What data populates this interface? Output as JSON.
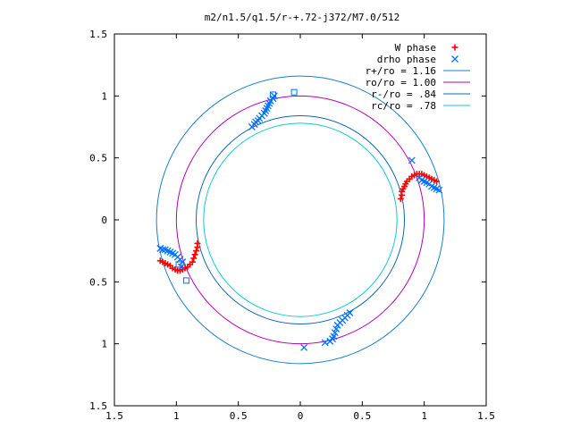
{
  "chart_data": {
    "type": "scatter",
    "title": "m2/n1.5/q1.5/r-+.72-j372/M7.0/512",
    "xlim": [
      -1.5,
      1.5
    ],
    "ylim": [
      -1.5,
      1.5
    ],
    "x_ticks": [
      -1.5,
      -1,
      -0.5,
      0,
      0.5,
      1,
      1.5
    ],
    "y_ticks": [
      -1.5,
      -1,
      -0.5,
      0,
      0.5,
      1,
      1.5
    ],
    "x_tick_labels": [
      "1.5",
      "1",
      "0.5",
      "0",
      "0.5",
      "1",
      "1.5"
    ],
    "y_tick_labels": [
      "1.5",
      "1",
      "0.5",
      "0",
      "0.5",
      "1",
      "1.5"
    ],
    "grid": false,
    "legend_position": "top-right",
    "series": [
      {
        "name": "W phase",
        "marker": "plus",
        "color": "#ff0000",
        "points": [
          [
            0.81,
            0.17
          ],
          [
            0.82,
            0.2
          ],
          [
            0.82,
            0.23
          ],
          [
            0.83,
            0.25
          ],
          [
            0.84,
            0.27
          ],
          [
            0.85,
            0.29
          ],
          [
            0.86,
            0.31
          ],
          [
            0.88,
            0.33
          ],
          [
            0.9,
            0.35
          ],
          [
            0.92,
            0.36
          ],
          [
            0.94,
            0.37
          ],
          [
            0.96,
            0.37
          ],
          [
            0.98,
            0.37
          ],
          [
            1.0,
            0.36
          ],
          [
            1.02,
            0.35
          ],
          [
            1.04,
            0.34
          ],
          [
            1.06,
            0.33
          ],
          [
            1.08,
            0.32
          ],
          [
            1.1,
            0.31
          ],
          [
            -0.83,
            -0.19
          ],
          [
            -0.83,
            -0.22
          ],
          [
            -0.84,
            -0.25
          ],
          [
            -0.85,
            -0.28
          ],
          [
            -0.86,
            -0.31
          ],
          [
            -0.87,
            -0.34
          ],
          [
            -0.89,
            -0.36
          ],
          [
            -0.91,
            -0.38
          ],
          [
            -0.93,
            -0.39
          ],
          [
            -0.95,
            -0.4
          ],
          [
            -0.97,
            -0.41
          ],
          [
            -0.99,
            -0.41
          ],
          [
            -1.01,
            -0.4
          ],
          [
            -1.03,
            -0.39
          ],
          [
            -1.05,
            -0.37
          ],
          [
            -1.07,
            -0.36
          ],
          [
            -1.09,
            -0.35
          ],
          [
            -1.11,
            -0.34
          ],
          [
            -1.13,
            -0.33
          ]
        ]
      },
      {
        "name": "drho phase",
        "marker": "cross",
        "color": "#0072ff",
        "points": [
          [
            0.9,
            0.48
          ],
          [
            0.96,
            0.34
          ],
          [
            0.98,
            0.32
          ],
          [
            1.0,
            0.31
          ],
          [
            1.02,
            0.3
          ],
          [
            1.04,
            0.29
          ],
          [
            1.06,
            0.27
          ],
          [
            1.08,
            0.26
          ],
          [
            1.1,
            0.25
          ],
          [
            1.12,
            0.24
          ],
          [
            -0.21,
            1.0
          ],
          [
            -0.22,
            0.98
          ],
          [
            -0.24,
            0.96
          ],
          [
            -0.25,
            0.94
          ],
          [
            -0.26,
            0.92
          ],
          [
            -0.27,
            0.9
          ],
          [
            -0.28,
            0.88
          ],
          [
            -0.29,
            0.86
          ],
          [
            -0.31,
            0.84
          ],
          [
            -0.33,
            0.82
          ],
          [
            -0.34,
            0.8
          ],
          [
            -0.36,
            0.79
          ],
          [
            -0.37,
            0.77
          ],
          [
            -0.39,
            0.75
          ],
          [
            -1.13,
            -0.23
          ],
          [
            -1.11,
            -0.24
          ],
          [
            -1.09,
            -0.24
          ],
          [
            -1.07,
            -0.25
          ],
          [
            -1.05,
            -0.26
          ],
          [
            -1.03,
            -0.27
          ],
          [
            -1.01,
            -0.28
          ],
          [
            -0.99,
            -0.3
          ],
          [
            -0.97,
            -0.32
          ],
          [
            -0.95,
            -0.34
          ],
          [
            -0.96,
            -0.38
          ],
          [
            0.03,
            -1.03
          ],
          [
            0.2,
            -0.99
          ],
          [
            0.24,
            -0.98
          ],
          [
            0.26,
            -0.96
          ],
          [
            0.27,
            -0.94
          ],
          [
            0.28,
            -0.91
          ],
          [
            0.29,
            -0.88
          ],
          [
            0.3,
            -0.85
          ],
          [
            0.32,
            -0.83
          ],
          [
            0.34,
            -0.81
          ],
          [
            0.36,
            -0.79
          ],
          [
            0.38,
            -0.77
          ],
          [
            0.4,
            -0.75
          ]
        ]
      },
      {
        "name": "",
        "marker": "square",
        "color": "#0072ff",
        "points": [
          [
            -0.22,
            1.01
          ],
          [
            -0.05,
            1.03
          ],
          [
            -0.92,
            -0.49
          ],
          [
            -0.98,
            -0.36
          ]
        ]
      }
    ],
    "circles": [
      {
        "name": "r+/ro = 1.16",
        "radius": 1.16,
        "color": "#1a7fc8"
      },
      {
        "name": "ro/ro = 1.00",
        "radius": 1.0,
        "color": "#b400b4"
      },
      {
        "name": "r-/ro = .84",
        "radius": 0.84,
        "color": "#0f64b4"
      },
      {
        "name": "rc/ro = .78",
        "radius": 0.78,
        "color": "#14c8d2"
      }
    ]
  }
}
